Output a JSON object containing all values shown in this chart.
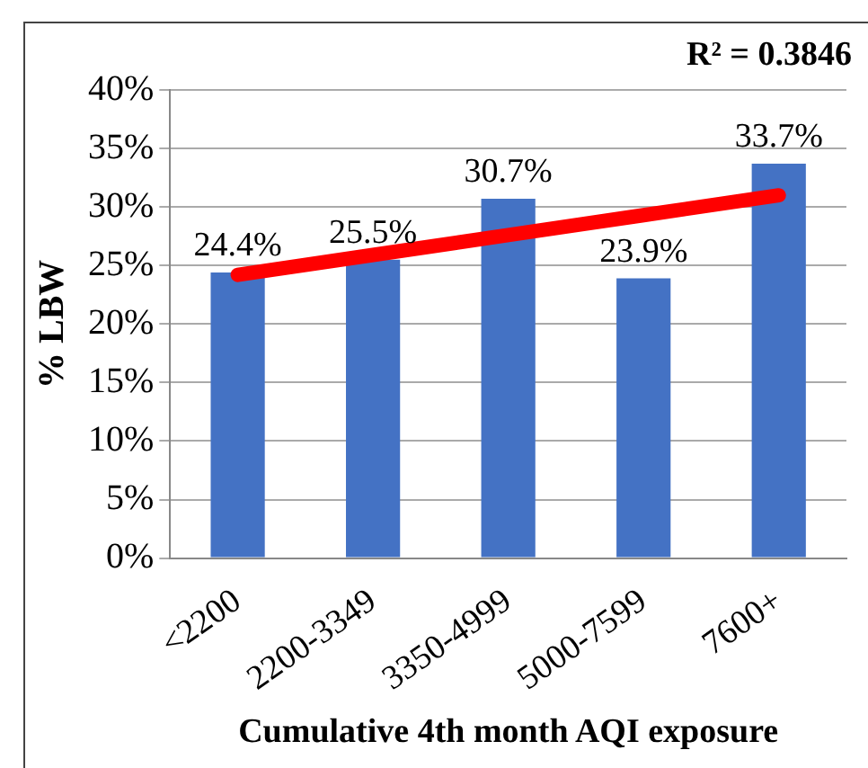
{
  "chart_data": {
    "type": "bar",
    "xlabel": "Cumulative 4th month AQI exposure",
    "ylabel": "% LBW",
    "categories": [
      "<2200",
      "2200-3349",
      "3350-4999",
      "5000-7599",
      "7600+"
    ],
    "series": [
      {
        "color": "#4472c4",
        "values": [
          24.4,
          25.5,
          30.7,
          23.9,
          33.7
        ],
        "value_labels": [
          "24.4%",
          "25.5%",
          "30.7%",
          "23.9%",
          "33.7%"
        ]
      },
      {
        "type": "line",
        "color": "#ff0000",
        "values": [
          24.2,
          25.9,
          27.6,
          29.3,
          31.0
        ],
        "marker": "none"
      }
    ],
    "ylim": [
      0,
      40
    ],
    "yticks": [
      {
        "value": 0,
        "label": "0%"
      },
      {
        "value": 5,
        "label": "5%"
      },
      {
        "value": 10,
        "label": "10%"
      },
      {
        "value": 15,
        "label": "15%"
      },
      {
        "value": 20,
        "label": "20%"
      },
      {
        "value": 25,
        "label": "25%"
      },
      {
        "value": 30,
        "label": "30%"
      },
      {
        "value": 35,
        "label": "35%"
      },
      {
        "value": 40,
        "label": "40%"
      }
    ],
    "grid": "y",
    "legend": false,
    "annotations": [
      "R² = 0.3846"
    ]
  }
}
